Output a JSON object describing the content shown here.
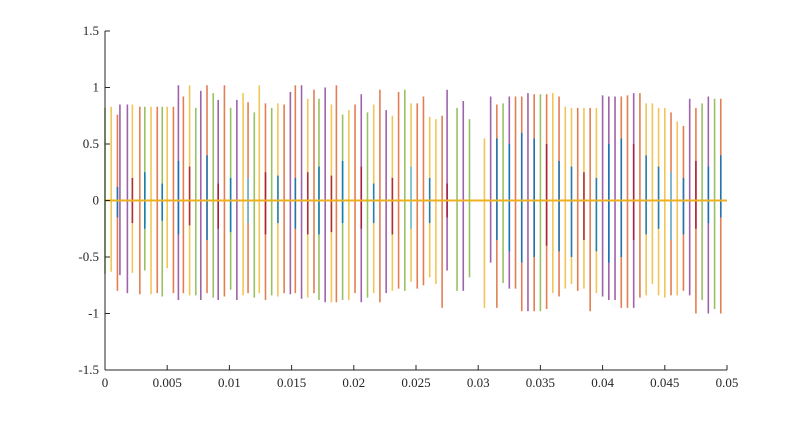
{
  "chart_data": {
    "type": "line",
    "title": "",
    "xlabel": "",
    "ylabel": "",
    "xlim": [
      0,
      0.05
    ],
    "ylim": [
      -1.5,
      1.5
    ],
    "xticks": [
      "0",
      "0.005",
      "0.01",
      "0.015",
      "0.02",
      "0.025",
      "0.03",
      "0.035",
      "0.04",
      "0.045",
      "0.05"
    ],
    "xtick_values": [
      0,
      0.005,
      0.01,
      0.015,
      0.02,
      0.025,
      0.03,
      0.035,
      0.04,
      0.045,
      0.05
    ],
    "yticks": [
      "-1.5",
      "-1",
      "-0.5",
      "0",
      "0.5",
      "1",
      "1.5"
    ],
    "ytick_values": [
      -1.5,
      -1,
      -0.5,
      0,
      0.5,
      1,
      1.5
    ],
    "grid": false,
    "legend": "none",
    "colors": [
      "#0072BD",
      "#D95319",
      "#EDB120",
      "#7E2F8E",
      "#77AC30",
      "#4DBEEE",
      "#A2142F"
    ],
    "baseline": {
      "y": 0,
      "color": "#EDB120"
    },
    "stems": [
      [
        0.0,
        -0.65,
        0.82,
        4
      ],
      [
        0.0005,
        -0.63,
        0.83,
        2
      ],
      [
        0.001,
        -0.8,
        0.76,
        1
      ],
      [
        0.0012,
        -0.66,
        0.85,
        3
      ],
      [
        0.0018,
        -0.82,
        0.85,
        3
      ],
      [
        0.0022,
        -0.64,
        0.85,
        2
      ],
      [
        0.0028,
        -0.83,
        0.83,
        1
      ],
      [
        0.0032,
        -0.62,
        0.83,
        4
      ],
      [
        0.0037,
        -0.83,
        0.83,
        2
      ],
      [
        0.0042,
        -0.82,
        0.83,
        1
      ],
      [
        0.0046,
        -0.85,
        0.83,
        4
      ],
      [
        0.005,
        -0.6,
        0.83,
        2
      ],
      [
        0.0055,
        -0.82,
        0.83,
        1
      ],
      [
        0.0059,
        -0.88,
        1.02,
        3
      ],
      [
        0.0063,
        -0.82,
        0.92,
        1
      ],
      [
        0.0068,
        -0.84,
        1.02,
        2
      ],
      [
        0.0073,
        -0.84,
        0.82,
        4
      ],
      [
        0.0077,
        -0.88,
        0.97,
        3
      ],
      [
        0.0082,
        -0.82,
        1.02,
        1
      ],
      [
        0.0087,
        -0.86,
        0.95,
        4
      ],
      [
        0.0091,
        -0.88,
        0.89,
        3
      ],
      [
        0.0096,
        -0.85,
        1.02,
        1
      ],
      [
        0.0101,
        -0.79,
        0.82,
        4
      ],
      [
        0.0106,
        -0.88,
        0.89,
        3
      ],
      [
        0.0111,
        -0.84,
        0.95,
        2
      ],
      [
        0.0115,
        -0.82,
        0.87,
        1
      ],
      [
        0.012,
        -0.86,
        0.78,
        4
      ],
      [
        0.0124,
        -0.82,
        1.02,
        2
      ],
      [
        0.0129,
        -0.88,
        0.86,
        1
      ],
      [
        0.0134,
        -0.84,
        0.82,
        4
      ],
      [
        0.0139,
        -0.85,
        0.86,
        2
      ],
      [
        0.0144,
        -0.82,
        0.85,
        1
      ],
      [
        0.0149,
        -0.83,
        0.96,
        3
      ],
      [
        0.0153,
        -0.82,
        1.02,
        1
      ],
      [
        0.0158,
        -0.87,
        1.02,
        3
      ],
      [
        0.0163,
        -0.86,
        0.9,
        2
      ],
      [
        0.0168,
        -0.82,
        0.98,
        1
      ],
      [
        0.0172,
        -0.88,
        0.9,
        4
      ],
      [
        0.0177,
        -0.9,
        1.0,
        3
      ],
      [
        0.0182,
        -0.9,
        0.85,
        2
      ],
      [
        0.0186,
        -0.9,
        1.02,
        1
      ],
      [
        0.0191,
        -0.88,
        0.76,
        4
      ],
      [
        0.0196,
        -0.88,
        0.8,
        2
      ],
      [
        0.0201,
        -0.82,
        0.85,
        1
      ],
      [
        0.0206,
        -0.9,
        0.94,
        3
      ],
      [
        0.0211,
        -0.86,
        0.78,
        4
      ],
      [
        0.0216,
        -0.82,
        0.85,
        2
      ],
      [
        0.0221,
        -0.9,
        0.98,
        1
      ],
      [
        0.0226,
        -0.82,
        0.8,
        3
      ],
      [
        0.0231,
        -0.8,
        0.75,
        2
      ],
      [
        0.0236,
        -0.78,
        0.96,
        1
      ],
      [
        0.0241,
        -0.8,
        0.98,
        4
      ],
      [
        0.0246,
        -0.72,
        0.86,
        2
      ],
      [
        0.0251,
        -0.78,
        0.86,
        1
      ],
      [
        0.0256,
        -0.75,
        0.92,
        1
      ],
      [
        0.0261,
        -0.68,
        0.74,
        2
      ],
      [
        0.0266,
        -0.74,
        0.72,
        2
      ],
      [
        0.0271,
        -0.95,
        0.75,
        1
      ],
      [
        0.0275,
        -0.62,
        0.98,
        3
      ],
      [
        0.0283,
        -0.8,
        0.82,
        4
      ],
      [
        0.0288,
        -0.8,
        0.88,
        3
      ],
      [
        0.0293,
        -0.68,
        0.72,
        4
      ],
      [
        0.0305,
        -0.95,
        0.55,
        2
      ],
      [
        0.031,
        -0.55,
        0.92,
        3
      ],
      [
        0.0315,
        -0.95,
        0.85,
        1
      ],
      [
        0.032,
        -0.73,
        0.86,
        4
      ],
      [
        0.0325,
        -0.78,
        0.92,
        3
      ],
      [
        0.033,
        -0.78,
        0.92,
        1
      ],
      [
        0.0335,
        -0.98,
        0.92,
        1
      ],
      [
        0.034,
        -0.98,
        0.95,
        3
      ],
      [
        0.0345,
        -0.98,
        0.94,
        1
      ],
      [
        0.035,
        -0.98,
        0.94,
        4
      ],
      [
        0.0355,
        -0.96,
        0.94,
        1
      ],
      [
        0.036,
        -0.82,
        0.95,
        2
      ],
      [
        0.0365,
        -0.85,
        0.92,
        1
      ],
      [
        0.037,
        -0.78,
        0.83,
        2
      ],
      [
        0.0375,
        -0.74,
        0.82,
        2
      ],
      [
        0.038,
        -0.8,
        0.82,
        1
      ],
      [
        0.0385,
        -0.78,
        0.82,
        2
      ],
      [
        0.039,
        -0.98,
        0.82,
        1
      ],
      [
        0.0395,
        -0.82,
        0.82,
        2
      ],
      [
        0.04,
        -0.85,
        0.93,
        3
      ],
      [
        0.0405,
        -0.88,
        0.92,
        3
      ],
      [
        0.041,
        -0.88,
        0.92,
        3
      ],
      [
        0.0415,
        -0.95,
        0.92,
        1
      ],
      [
        0.042,
        -0.95,
        0.93,
        1
      ],
      [
        0.0425,
        -0.95,
        0.95,
        3
      ],
      [
        0.043,
        -0.86,
        0.95,
        1
      ],
      [
        0.0435,
        -0.84,
        0.86,
        2
      ],
      [
        0.044,
        -0.74,
        0.86,
        2
      ],
      [
        0.0445,
        -0.84,
        0.82,
        2
      ],
      [
        0.045,
        -0.86,
        0.82,
        2
      ],
      [
        0.0455,
        -0.84,
        0.78,
        1
      ],
      [
        0.046,
        -0.84,
        0.7,
        2
      ],
      [
        0.0465,
        -0.8,
        0.66,
        1
      ],
      [
        0.047,
        -0.84,
        0.9,
        3
      ],
      [
        0.0475,
        -1.0,
        0.82,
        1
      ],
      [
        0.048,
        -0.88,
        0.86,
        4
      ],
      [
        0.0485,
        -1.0,
        0.92,
        3
      ],
      [
        0.049,
        -0.96,
        0.9,
        4
      ],
      [
        0.0495,
        -1.0,
        0.9,
        1
      ]
    ],
    "inner": [
      [
        0.001,
        -0.15,
        0.12,
        0
      ],
      [
        0.0022,
        -0.2,
        0.2,
        6
      ],
      [
        0.0032,
        -0.25,
        0.25,
        0
      ],
      [
        0.0046,
        -0.18,
        0.15,
        0
      ],
      [
        0.0059,
        -0.3,
        0.35,
        0
      ],
      [
        0.0068,
        -0.22,
        0.3,
        6
      ],
      [
        0.0082,
        -0.35,
        0.4,
        0
      ],
      [
        0.0091,
        -0.25,
        0.15,
        6
      ],
      [
        0.0101,
        -0.28,
        0.2,
        0
      ],
      [
        0.0115,
        -0.2,
        0.2,
        5
      ],
      [
        0.0129,
        -0.3,
        0.25,
        6
      ],
      [
        0.0139,
        -0.2,
        0.22,
        0
      ],
      [
        0.0153,
        -0.25,
        0.2,
        0
      ],
      [
        0.0163,
        -0.3,
        0.25,
        6
      ],
      [
        0.0172,
        -0.3,
        0.3,
        0
      ],
      [
        0.0182,
        -0.28,
        0.22,
        6
      ],
      [
        0.0191,
        -0.2,
        0.35,
        0
      ],
      [
        0.0206,
        -0.25,
        0.3,
        6
      ],
      [
        0.0216,
        -0.2,
        0.15,
        0
      ],
      [
        0.0231,
        -0.3,
        0.2,
        6
      ],
      [
        0.0246,
        -0.25,
        0.3,
        5
      ],
      [
        0.0261,
        -0.2,
        0.2,
        0
      ],
      [
        0.0275,
        -0.15,
        0.15,
        6
      ],
      [
        0.0315,
        -0.35,
        0.55,
        0
      ],
      [
        0.0325,
        -0.45,
        0.5,
        0
      ],
      [
        0.0335,
        -0.55,
        0.6,
        0
      ],
      [
        0.0345,
        -0.5,
        0.55,
        0
      ],
      [
        0.0355,
        -0.4,
        0.5,
        6
      ],
      [
        0.0365,
        -0.45,
        0.35,
        0
      ],
      [
        0.0375,
        -0.5,
        0.3,
        0
      ],
      [
        0.0385,
        -0.35,
        0.25,
        6
      ],
      [
        0.0395,
        -0.45,
        0.2,
        0
      ],
      [
        0.0405,
        -0.55,
        0.5,
        0
      ],
      [
        0.0415,
        -0.5,
        0.55,
        0
      ],
      [
        0.0425,
        -0.35,
        0.5,
        6
      ],
      [
        0.0435,
        -0.3,
        0.4,
        0
      ],
      [
        0.0445,
        -0.25,
        0.3,
        0
      ],
      [
        0.0455,
        -0.35,
        0.25,
        5
      ],
      [
        0.0465,
        -0.3,
        0.2,
        0
      ],
      [
        0.0475,
        -0.25,
        0.35,
        6
      ],
      [
        0.0485,
        -0.2,
        0.3,
        0
      ],
      [
        0.0495,
        -0.15,
        0.4,
        0
      ]
    ]
  }
}
